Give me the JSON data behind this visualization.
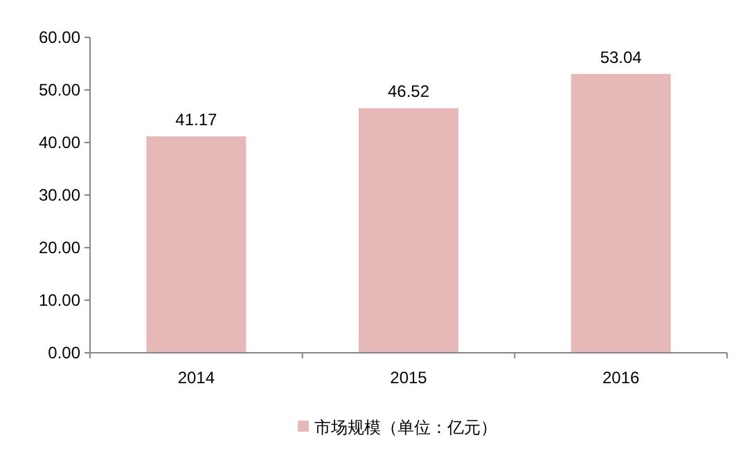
{
  "chart_data": {
    "type": "bar",
    "categories": [
      "2014",
      "2015",
      "2016"
    ],
    "series": [
      {
        "name": "市场规模（单位：亿元）",
        "color": "#e6b9b8",
        "values": [
          41.17,
          46.52,
          53.04
        ]
      }
    ],
    "ylim": [
      0,
      60
    ],
    "yticks": [
      {
        "value": 0,
        "label": "0.00"
      },
      {
        "value": 10,
        "label": "10.00"
      },
      {
        "value": 20,
        "label": "20.00"
      },
      {
        "value": 30,
        "label": "30.00"
      },
      {
        "value": 40,
        "label": "40.00"
      },
      {
        "value": 50,
        "label": "50.00"
      },
      {
        "value": 60,
        "label": "60.00"
      }
    ],
    "data_labels": true,
    "legend": "bottom",
    "grid": false
  }
}
